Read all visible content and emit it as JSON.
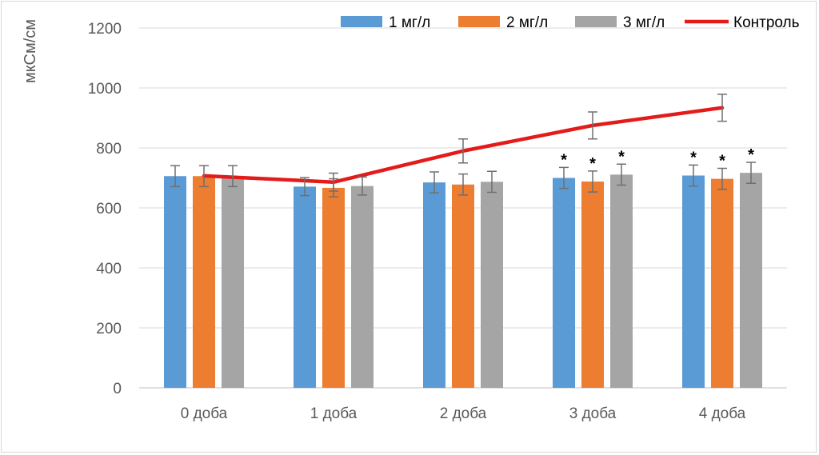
{
  "chart_data": {
    "type": "bar",
    "ylabel": "мкСм/см",
    "ylim": [
      0,
      1200
    ],
    "yticks": [
      0,
      200,
      400,
      600,
      800,
      1000,
      1200
    ],
    "grid": true,
    "legend_position": "top-right",
    "categories": [
      "0 доба",
      "1 доба",
      "2 доба",
      "3 доба",
      "4 доба"
    ],
    "series": [
      {
        "name": "1 мг/л",
        "kind": "bar",
        "color": "#5b9bd5",
        "values": [
          706,
          671,
          685,
          700,
          708
        ],
        "errors": [
          35,
          30,
          35,
          35,
          35
        ],
        "significance": [
          "",
          "",
          "",
          "*",
          "*"
        ]
      },
      {
        "name": "2 мг/л",
        "kind": "bar",
        "color": "#ed7d31",
        "values": [
          706,
          667,
          678,
          688,
          697
        ],
        "errors": [
          35,
          30,
          35,
          35,
          35
        ],
        "significance": [
          "",
          "",
          "",
          "*",
          "*"
        ]
      },
      {
        "name": "3 мг/л",
        "kind": "bar",
        "color": "#a5a5a5",
        "values": [
          706,
          673,
          687,
          711,
          717
        ],
        "errors": [
          35,
          30,
          35,
          35,
          35
        ],
        "significance": [
          "",
          "",
          "",
          "*",
          "*"
        ]
      },
      {
        "name": "Контроль",
        "kind": "line",
        "color": "#e41b1b",
        "values": [
          707,
          686,
          790,
          875,
          934
        ],
        "errors": [
          0,
          30,
          40,
          45,
          45
        ]
      }
    ]
  }
}
